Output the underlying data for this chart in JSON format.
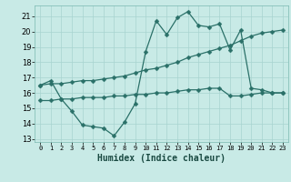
{
  "title": "",
  "xlabel": "Humidex (Indice chaleur)",
  "background_color": "#c8eae6",
  "grid_color": "#a8d4d0",
  "line_color": "#2a7068",
  "xlim": [
    -0.5,
    23.5
  ],
  "ylim": [
    12.8,
    21.7
  ],
  "yticks": [
    13,
    14,
    15,
    16,
    17,
    18,
    19,
    20,
    21
  ],
  "xticks": [
    0,
    1,
    2,
    3,
    4,
    5,
    6,
    7,
    8,
    9,
    10,
    11,
    12,
    13,
    14,
    15,
    16,
    17,
    18,
    19,
    20,
    21,
    22,
    23
  ],
  "line1_x": [
    0,
    1,
    2,
    3,
    4,
    5,
    6,
    7,
    8,
    9,
    10,
    11,
    12,
    13,
    14,
    15,
    16,
    17,
    18,
    19,
    20,
    21,
    22,
    23
  ],
  "line1_y": [
    16.5,
    16.8,
    15.6,
    14.8,
    13.9,
    13.8,
    13.7,
    13.2,
    14.1,
    15.3,
    18.7,
    20.7,
    19.8,
    20.9,
    21.3,
    20.4,
    20.3,
    20.5,
    18.8,
    20.1,
    16.3,
    16.2,
    16.0,
    16.0
  ],
  "line2_x": [
    0,
    1,
    2,
    3,
    4,
    5,
    6,
    7,
    8,
    9,
    10,
    11,
    12,
    13,
    14,
    15,
    16,
    17,
    18,
    19,
    20,
    21,
    22,
    23
  ],
  "line2_y": [
    16.5,
    16.6,
    16.6,
    16.7,
    16.8,
    16.8,
    16.9,
    17.0,
    17.1,
    17.3,
    17.5,
    17.6,
    17.8,
    18.0,
    18.3,
    18.5,
    18.7,
    18.9,
    19.1,
    19.4,
    19.7,
    19.9,
    20.0,
    20.1
  ],
  "line3_x": [
    0,
    1,
    2,
    3,
    4,
    5,
    6,
    7,
    8,
    9,
    10,
    11,
    12,
    13,
    14,
    15,
    16,
    17,
    18,
    19,
    20,
    21,
    22,
    23
  ],
  "line3_y": [
    15.5,
    15.5,
    15.6,
    15.6,
    15.7,
    15.7,
    15.7,
    15.8,
    15.8,
    15.9,
    15.9,
    16.0,
    16.0,
    16.1,
    16.2,
    16.2,
    16.3,
    16.3,
    15.8,
    15.8,
    15.9,
    16.0,
    16.0,
    16.0
  ]
}
